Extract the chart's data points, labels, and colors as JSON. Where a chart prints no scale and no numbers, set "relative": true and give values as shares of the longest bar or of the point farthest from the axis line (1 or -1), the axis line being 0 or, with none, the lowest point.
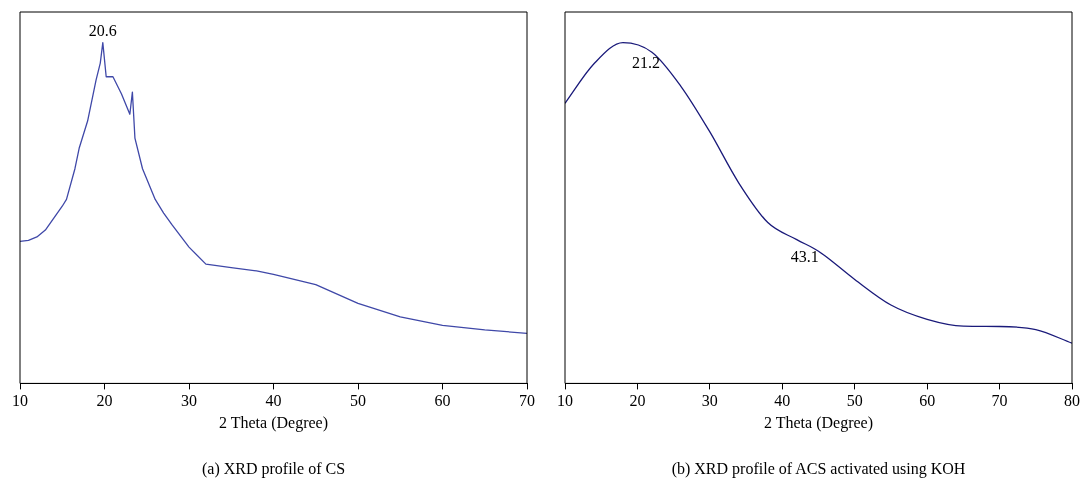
{
  "chart_data": [
    {
      "type": "line",
      "title": "(a) XRD profile of CS",
      "xlabel": "2 Theta (Degree)",
      "relative": true,
      "xlim": [
        10,
        70
      ],
      "xticks": [
        10,
        20,
        30,
        40,
        50,
        60,
        70
      ],
      "grid": false,
      "legend": false,
      "marker": "none",
      "line_style": "solid",
      "annotations": [
        {
          "text": "20.6",
          "x": 19.8,
          "y": 1
        }
      ],
      "series": [
        {
          "color": "#3f48a8",
          "x": [
            10,
            11,
            12,
            13,
            14,
            15,
            15.5,
            16.5,
            17,
            18,
            19,
            19.5,
            19.8,
            20.2,
            21,
            22,
            23,
            23.3,
            23.6,
            24.5,
            26,
            27,
            28,
            30,
            32,
            35,
            38,
            40,
            45,
            50,
            55,
            60,
            65,
            70
          ],
          "values": [
            0.417,
            0.42,
            0.43,
            0.45,
            0.485,
            0.52,
            0.54,
            0.63,
            0.69,
            0.77,
            0.89,
            0.94,
            1,
            0.9,
            0.9,
            0.85,
            0.79,
            0.855,
            0.72,
            0.63,
            0.54,
            0.5,
            0.465,
            0.4,
            0.35,
            0.34,
            0.33,
            0.32,
            0.29,
            0.235,
            0.195,
            0.17,
            0.157,
            0.147
          ]
        }
      ]
    },
    {
      "type": "line",
      "title": "(b) XRD profile of ACS activated using KOH",
      "xlabel": "2 Theta (Degree)",
      "relative": true,
      "xlim": [
        10,
        80
      ],
      "xticks": [
        10,
        20,
        30,
        40,
        50,
        60,
        70,
        80
      ],
      "grid": false,
      "legend": false,
      "marker": "none",
      "line_style": "solid",
      "annotations": [
        {
          "text": "21.2",
          "x": 21.2,
          "y": 0.98
        },
        {
          "text": "43.1",
          "x": 43.1,
          "y": 0.41
        }
      ],
      "series": [
        {
          "color": "#1a1a7a",
          "x": [
            10,
            14,
            18,
            22,
            26,
            30,
            34,
            38,
            42,
            45,
            50,
            55,
            60,
            65,
            70,
            75,
            80
          ],
          "values": [
            0.822,
            0.938,
            1,
            0.972,
            0.872,
            0.738,
            0.588,
            0.472,
            0.422,
            0.388,
            0.305,
            0.23,
            0.188,
            0.168,
            0.167,
            0.158,
            0.118
          ]
        }
      ]
    }
  ]
}
